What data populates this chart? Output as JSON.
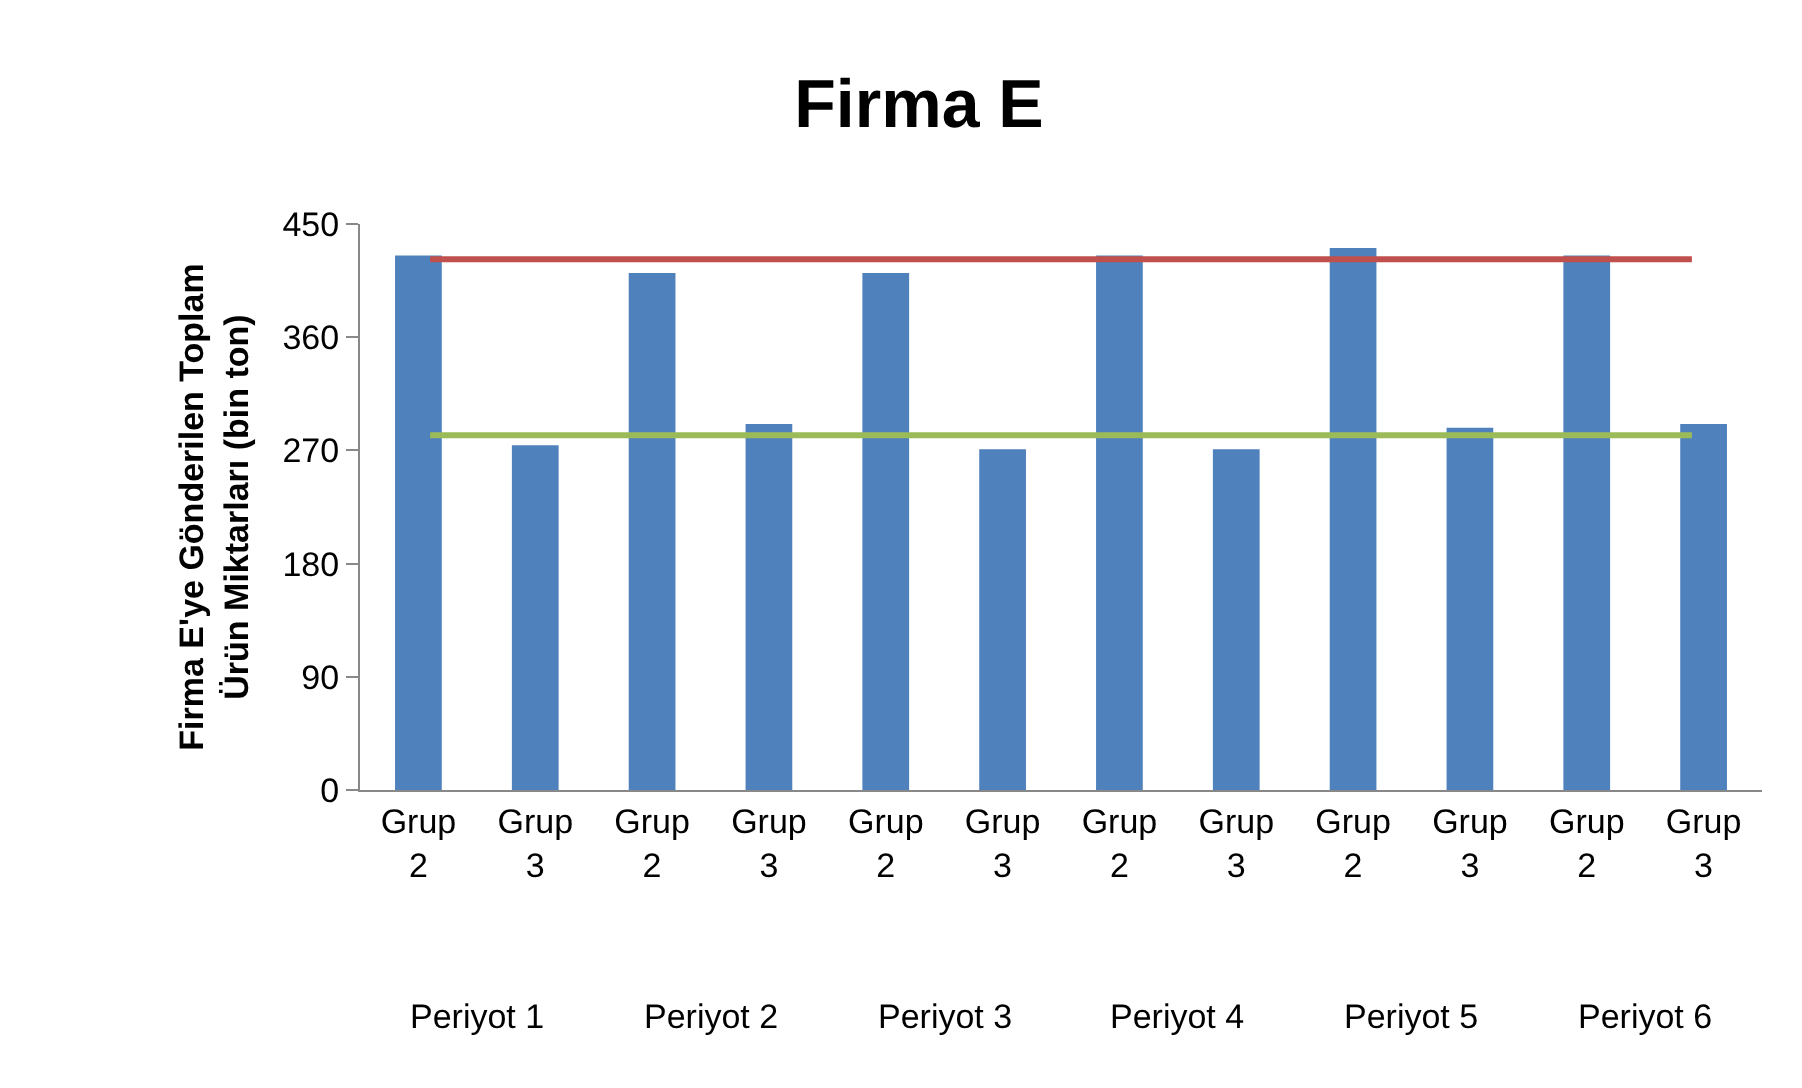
{
  "chart_data": {
    "type": "bar",
    "title": "Firma E",
    "ylabel": "Firma E'ye Gönderilen Toplam Ürün Miktarları (bin ton)",
    "categories": [
      "Grup 2",
      "Grup 3",
      "Grup 2",
      "Grup 3",
      "Grup 2",
      "Grup 3",
      "Grup 2",
      "Grup 3",
      "Grup 2",
      "Grup 3",
      "Grup 2",
      "Grup 3"
    ],
    "values": [
      425,
      274,
      411,
      291,
      411,
      271,
      425,
      271,
      431,
      288,
      425,
      291
    ],
    "color": "#4f81bd",
    "annotations": [
      "Periyot 1",
      "Periyot 2",
      "Periyot 3",
      "Periyot 4",
      "Periyot 5",
      "Periyot 6"
    ],
    "ylim": [
      0,
      450
    ],
    "yticks": [
      0,
      90,
      180,
      270,
      360,
      450
    ],
    "grid": false,
    "ref_lines": [
      {
        "axis": "y",
        "value": 422,
        "color": "#c0504d"
      },
      {
        "axis": "y",
        "value": 282,
        "color": "#9bbb59"
      }
    ]
  }
}
